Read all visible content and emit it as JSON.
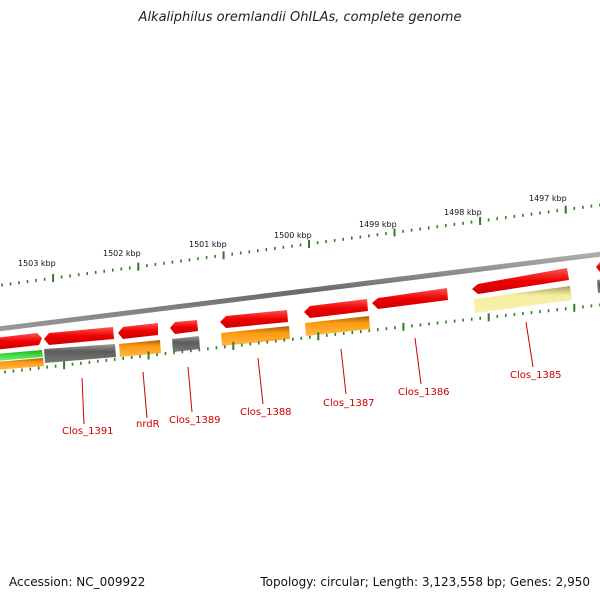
{
  "title": "Alkaliphilus oremlandii OhILAs, complete genome",
  "footer": {
    "accession": "Accession: NC_009922",
    "summary": "Topology: circular; Length: 3,123,558 bp; Genes: 2,950"
  },
  "scale": {
    "labels": [
      "1503 kbp",
      "1502 kbp",
      "1501 kbp",
      "1500 kbp",
      "1499 kbp",
      "1498 kbp",
      "1497 kbp"
    ]
  },
  "genes": [
    "Clos_1391",
    "nrdR",
    "Clos_1389",
    "Clos_1388",
    "Clos_1387",
    "Clos_1386",
    "Clos_1385"
  ],
  "colors": {
    "forward_gene": "#ee1111",
    "cog_orange": "#ff9900",
    "cog_gray": "#666666",
    "cog_yellow": "#f3ea9e",
    "cog_green": "#33cc33",
    "tick": "#2e7d1e",
    "backbone": "#808080",
    "label": "#cc0000"
  }
}
